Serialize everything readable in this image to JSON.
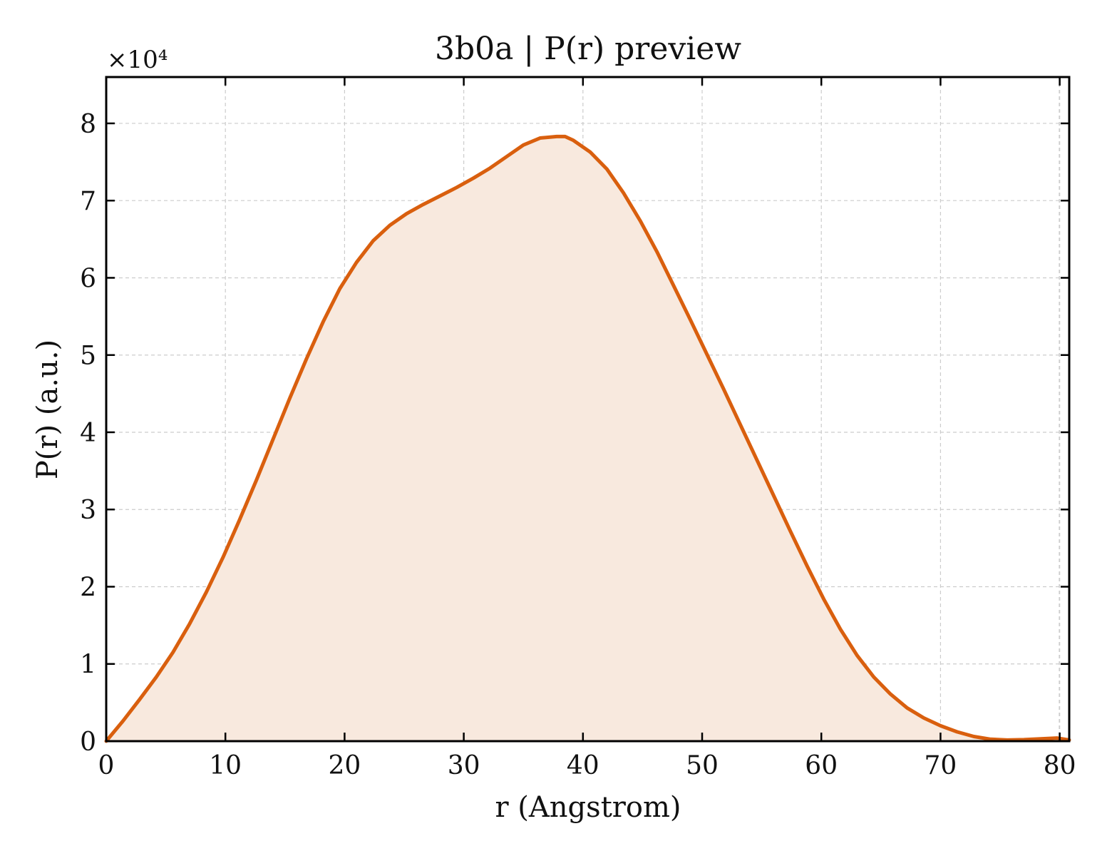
{
  "chart_data": {
    "type": "area",
    "title": "3b0a | P(r) preview",
    "xlabel": "r (Angstrom)",
    "ylabel": "P(r) (a.u.)",
    "y_offset_label": "×10⁴",
    "y_scale_factor": 10000,
    "xlim": [
      0,
      80.8
    ],
    "ylim": [
      0,
      86000
    ],
    "xticks": [
      0,
      10,
      20,
      30,
      40,
      50,
      60,
      70,
      80
    ],
    "yticks": [
      0,
      1,
      2,
      3,
      4,
      5,
      6,
      7,
      8
    ],
    "grid": true,
    "colors": {
      "line": "#d95f0e",
      "fill": "#f8e9de",
      "grid": "#cccccc",
      "axis": "#000000"
    },
    "series": [
      {
        "x": [
          0,
          1.4,
          2.8,
          4.2,
          5.6,
          7.0,
          8.4,
          9.8,
          11.2,
          12.6,
          14.0,
          15.4,
          16.8,
          18.2,
          19.6,
          21.0,
          22.4,
          23.8,
          25.2,
          26.6,
          28.0,
          29.4,
          30.8,
          32.2,
          33.6,
          35.0,
          36.4,
          37.8,
          38.5,
          39.2,
          40.6,
          42.0,
          43.4,
          44.8,
          46.2,
          47.6,
          49.0,
          50.4,
          51.8,
          53.2,
          54.6,
          56.0,
          57.4,
          58.8,
          60.2,
          61.6,
          63.0,
          64.4,
          65.8,
          67.2,
          68.6,
          70.0,
          71.4,
          72.8,
          74.2,
          75.6,
          77.0,
          78.4,
          79.8,
          80.8
        ],
        "y": [
          0,
          2600,
          5400,
          8300,
          11500,
          15200,
          19300,
          23800,
          28700,
          33800,
          39100,
          44400,
          49500,
          54300,
          58600,
          62000,
          64800,
          66800,
          68300,
          69500,
          70600,
          71700,
          72900,
          74200,
          75700,
          77200,
          78100,
          78300,
          78300,
          77800,
          76300,
          74100,
          71000,
          67400,
          63400,
          59000,
          54600,
          50100,
          45600,
          41000,
          36400,
          31800,
          27200,
          22700,
          18400,
          14500,
          11100,
          8300,
          6100,
          4300,
          3000,
          2000,
          1200,
          600,
          250,
          150,
          200,
          300,
          400,
          150
        ]
      }
    ]
  }
}
